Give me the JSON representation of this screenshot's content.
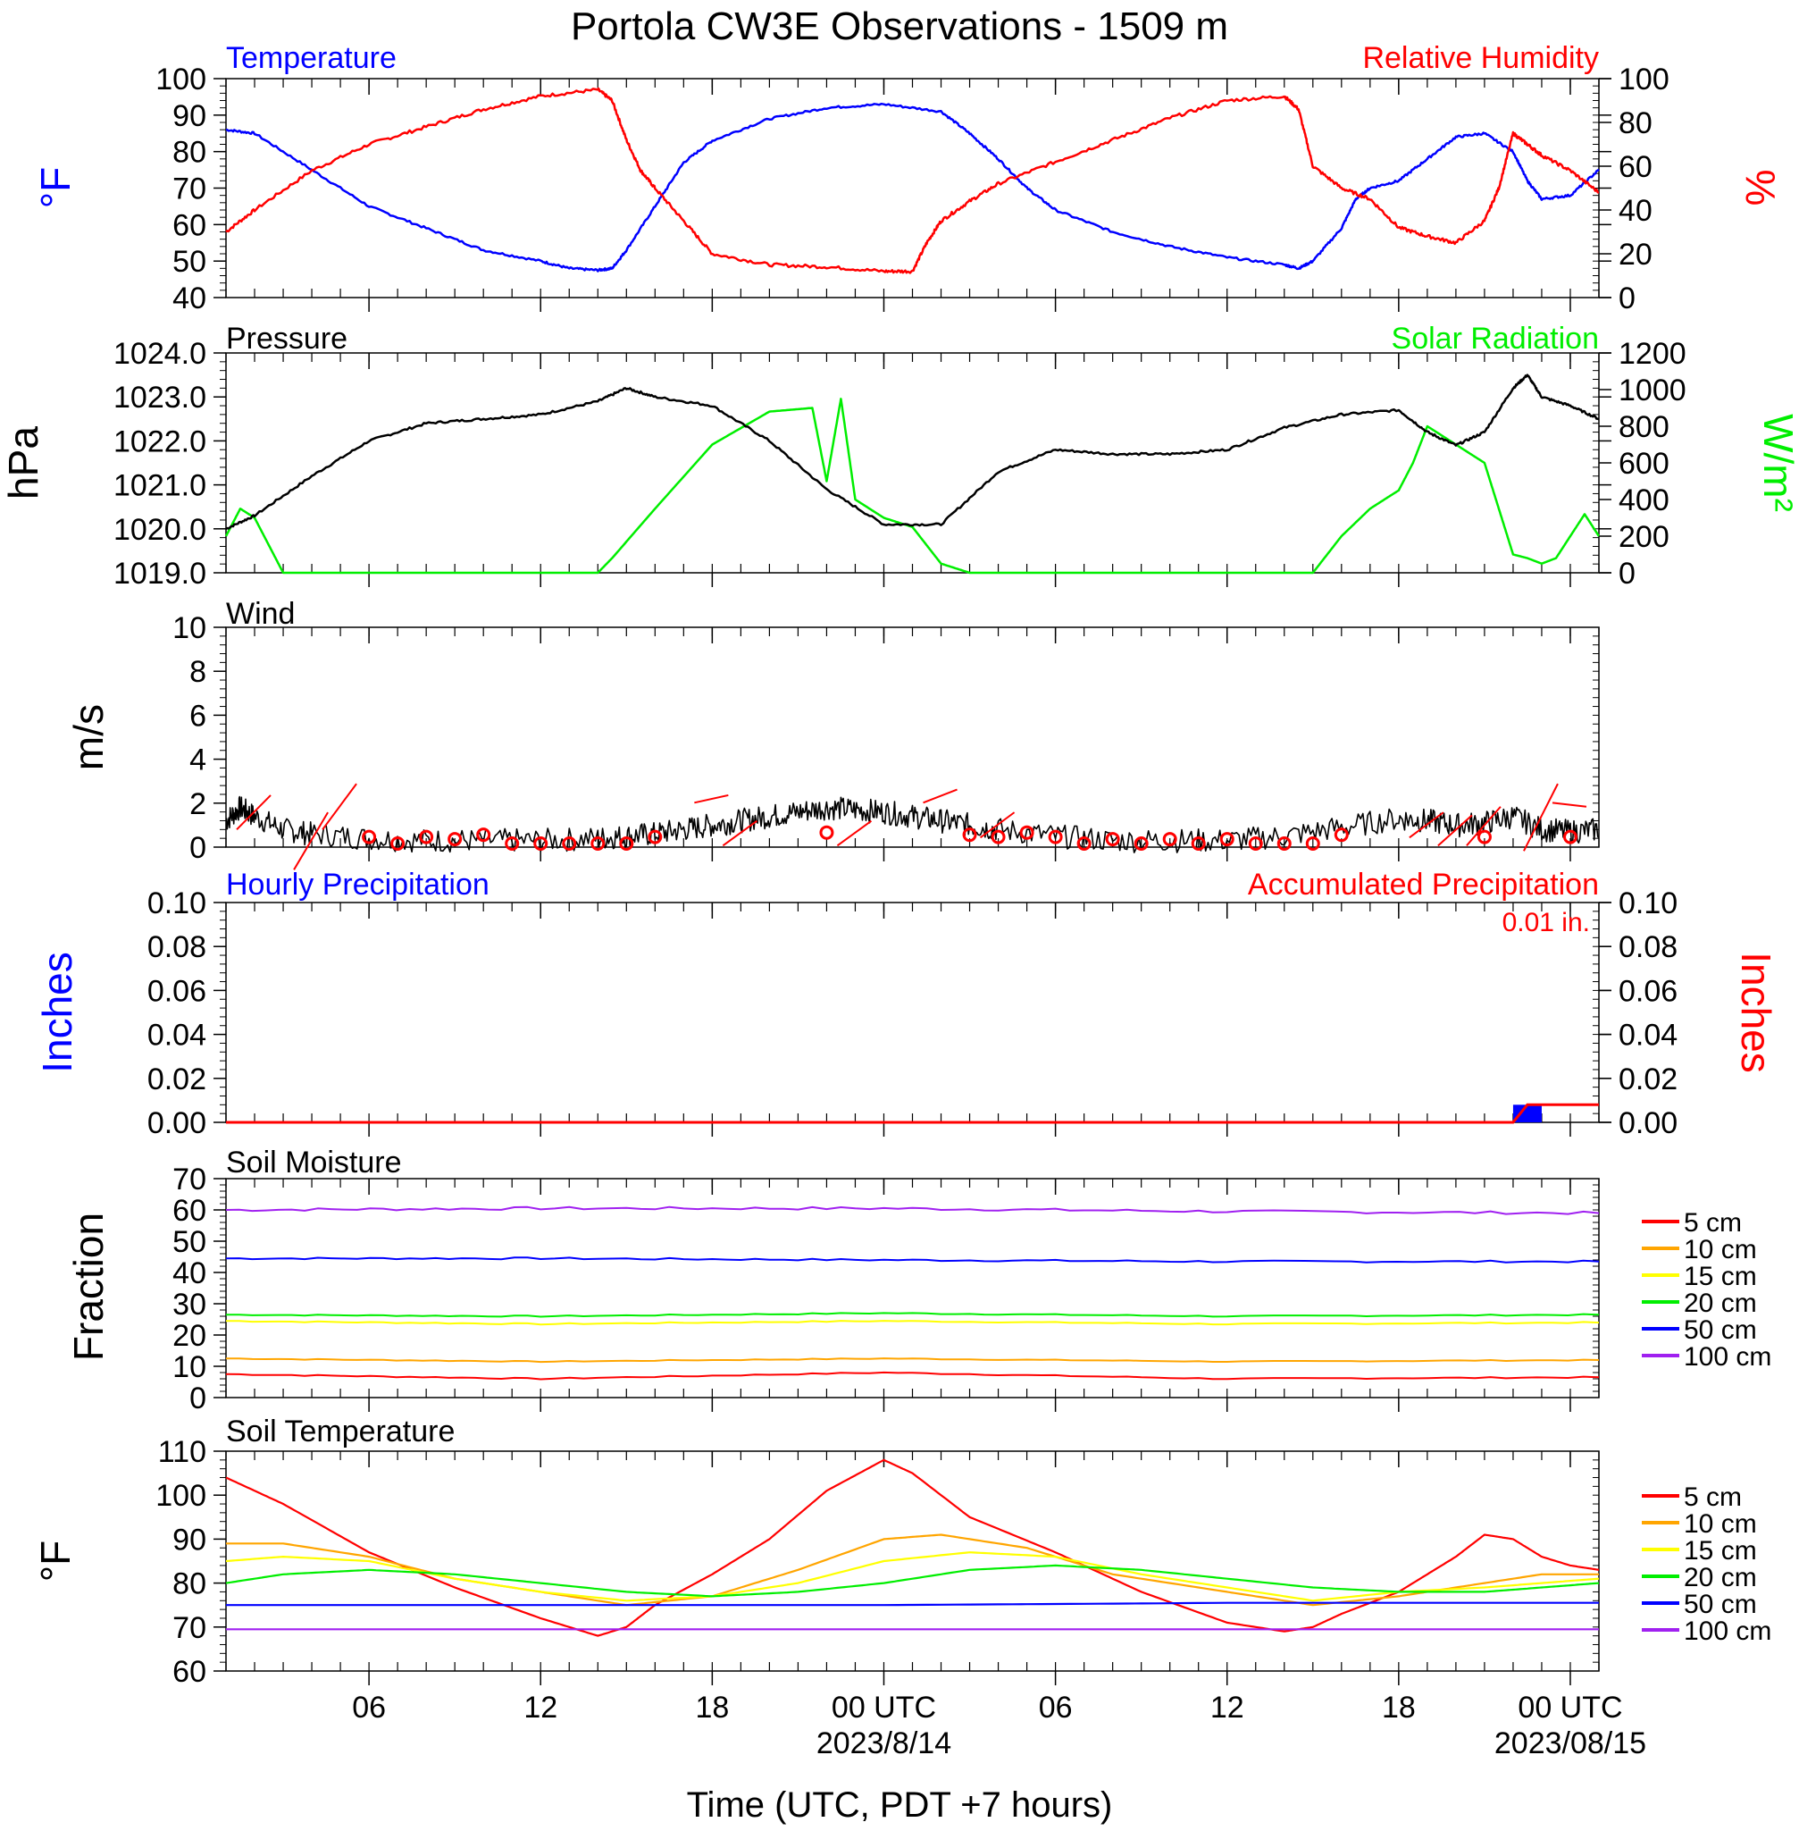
{
  "title": "Portola CW3E Observations - 1509 m",
  "xlabel": "Time (UTC, PDT +7 hours)",
  "x_axis": {
    "ticks": [
      {
        "hour": 6,
        "label": "06",
        "sub": ""
      },
      {
        "hour": 12,
        "label": "12",
        "sub": ""
      },
      {
        "hour": 18,
        "label": "18",
        "sub": ""
      },
      {
        "hour": 24,
        "label": "00 UTC",
        "sub": "2023/8/14"
      },
      {
        "hour": 30,
        "label": "06",
        "sub": ""
      },
      {
        "hour": 36,
        "label": "12",
        "sub": ""
      },
      {
        "hour": 42,
        "label": "18",
        "sub": ""
      },
      {
        "hour": 48,
        "label": "00 UTC",
        "sub": "2023/08/15"
      }
    ],
    "range_hours": [
      1,
      49
    ]
  },
  "colors": {
    "temperature": "#0000ff",
    "humidity": "#ff0000",
    "pressure": "#000000",
    "solar": "#00ee00",
    "wind": "#000000",
    "wind_barb": "#ff0000",
    "hourly_precip": "#0000ff",
    "accum_precip": "#ff0000",
    "depth_5": "#ff0000",
    "depth_10": "#ffa500",
    "depth_15": "#ffff00",
    "depth_20": "#00ee00",
    "depth_50": "#0000ff",
    "depth_100": "#a020f0"
  },
  "panels": {
    "temp_rh": {
      "left_title": "Temperature",
      "right_title": "Relative Humidity",
      "left_unit": "°F",
      "right_unit": "%",
      "left_ticks": [
        "40",
        "50",
        "60",
        "70",
        "80",
        "90",
        "100"
      ],
      "right_ticks": [
        "0",
        "20",
        "40",
        "60",
        "80",
        "100"
      ]
    },
    "pressure_solar": {
      "left_title": "Pressure",
      "right_title": "Solar Radiation",
      "left_unit": "hPa",
      "right_unit": "W/m²",
      "left_ticks": [
        "1019.0",
        "1020.0",
        "1021.0",
        "1022.0",
        "1023.0",
        "1024.0"
      ],
      "right_ticks": [
        "0",
        "200",
        "400",
        "600",
        "800",
        "1000",
        "1200"
      ]
    },
    "wind": {
      "left_title": "Wind",
      "left_unit": "m/s",
      "left_ticks": [
        "0",
        "2",
        "4",
        "6",
        "8",
        "10"
      ]
    },
    "precip": {
      "left_title": "Hourly Precipitation",
      "right_title": "Accumulated Precipitation",
      "total_label": "0.01 in.",
      "left_unit": "Inches",
      "right_unit": "Inches",
      "left_ticks": [
        "0.00",
        "0.02",
        "0.04",
        "0.06",
        "0.08",
        "0.10"
      ],
      "right_ticks": [
        "0.00",
        "0.02",
        "0.04",
        "0.06",
        "0.08",
        "0.10"
      ]
    },
    "soil_moisture": {
      "left_title": "Soil Moisture",
      "left_unit": "Fraction",
      "left_ticks": [
        "0",
        "10",
        "20",
        "30",
        "40",
        "50",
        "60",
        "70"
      ]
    },
    "soil_temperature": {
      "left_title": "Soil Temperature",
      "left_unit": "°F",
      "left_ticks": [
        "60",
        "70",
        "80",
        "90",
        "100",
        "110"
      ]
    }
  },
  "legend_depths": [
    "5 cm",
    "10 cm",
    "15 cm",
    "20 cm",
    "50 cm",
    "100 cm"
  ],
  "chart_data": [
    {
      "type": "line",
      "panel": "temp_rh",
      "ylim_left": [
        40,
        100
      ],
      "ylim_right": [
        0,
        100
      ],
      "series": [
        {
          "name": "Temperature",
          "axis": "left",
          "x": [
            1,
            2,
            4,
            6,
            8,
            10,
            12,
            13,
            14,
            14.5,
            15,
            16,
            17,
            18,
            20,
            22,
            24,
            26,
            27,
            28,
            29,
            30,
            32,
            34,
            36,
            38,
            38.5,
            39,
            40,
            40.5,
            41,
            42,
            43,
            44,
            45,
            46,
            46.5,
            47,
            48,
            49
          ],
          "values": [
            86,
            85,
            75,
            65,
            59,
            53,
            50,
            48,
            47.5,
            48,
            53,
            65,
            77,
            83,
            89,
            92,
            93,
            91,
            85,
            78,
            70,
            64,
            58,
            54,
            51,
            49,
            48,
            50,
            59,
            67,
            70,
            72,
            78,
            84,
            85,
            80,
            72,
            67,
            68,
            75
          ]
        },
        {
          "name": "Relative Humidity",
          "axis": "right",
          "x": [
            1,
            2,
            4,
            6,
            8,
            10,
            12,
            14,
            14.5,
            15,
            15.5,
            16,
            17,
            18,
            20,
            22,
            24,
            25,
            25.5,
            26,
            27,
            28,
            30,
            32,
            34,
            36,
            38,
            38.5,
            39,
            40,
            41,
            42,
            43,
            44,
            45,
            45.5,
            46,
            46.5,
            47,
            48,
            49
          ],
          "values": [
            30,
            40,
            58,
            70,
            78,
            86,
            92,
            95,
            90,
            72,
            58,
            50,
            35,
            20,
            15,
            14,
            12,
            12,
            25,
            35,
            44,
            52,
            62,
            72,
            82,
            90,
            92,
            86,
            60,
            50,
            45,
            32,
            28,
            25,
            35,
            50,
            75,
            70,
            65,
            58,
            48
          ]
        }
      ]
    },
    {
      "type": "line",
      "panel": "pressure_solar",
      "ylim_left": [
        1019.0,
        1024.0
      ],
      "ylim_right": [
        0,
        1200
      ],
      "series": [
        {
          "name": "Pressure",
          "axis": "left",
          "x": [
            1,
            2,
            4,
            6,
            8,
            10,
            12,
            14,
            15,
            16,
            18,
            20,
            22,
            24,
            26,
            28,
            30,
            32,
            34,
            36,
            38,
            40,
            42,
            43,
            44,
            45,
            46,
            46.5,
            47,
            48,
            49
          ],
          "values": [
            1020.0,
            1020.3,
            1021.2,
            1022.0,
            1022.4,
            1022.5,
            1022.6,
            1022.9,
            1023.2,
            1023.0,
            1022.8,
            1022.0,
            1020.9,
            1020.1,
            1020.1,
            1021.3,
            1021.8,
            1021.7,
            1021.7,
            1021.8,
            1022.3,
            1022.6,
            1022.7,
            1022.2,
            1021.9,
            1022.2,
            1023.2,
            1023.5,
            1023.0,
            1022.8,
            1022.5
          ]
        },
        {
          "name": "Solar Radiation",
          "axis": "right",
          "x": [
            1,
            1.5,
            2,
            2.5,
            3,
            13,
            14,
            14.5,
            16,
            18,
            20,
            21.5,
            22,
            22.5,
            23,
            24,
            25,
            25.5,
            26,
            27,
            38,
            39,
            40,
            41,
            42,
            42.5,
            43,
            44,
            45,
            45.5,
            46,
            46.5,
            47,
            47.5,
            48,
            48.5,
            49
          ],
          "values": [
            200,
            350,
            300,
            150,
            0,
            0,
            0,
            80,
            350,
            700,
            880,
            900,
            500,
            950,
            400,
            300,
            250,
            150,
            50,
            0,
            0,
            0,
            200,
            350,
            450,
            600,
            800,
            700,
            600,
            350,
            100,
            80,
            50,
            80,
            200,
            320,
            200
          ]
        }
      ]
    },
    {
      "type": "line",
      "panel": "wind",
      "ylabel": "m/s",
      "ylim": [
        0,
        10
      ],
      "series": [
        {
          "name": "Wind",
          "x": [
            1,
            1.5,
            2,
            3,
            4,
            6,
            8,
            10,
            12,
            14,
            15,
            16,
            17,
            18,
            19,
            20,
            21,
            22,
            23,
            24,
            25,
            26,
            27,
            28,
            30,
            32,
            34,
            36,
            38,
            40,
            42,
            43,
            44,
            45,
            46,
            47,
            48,
            49
          ],
          "values": [
            1.2,
            1.8,
            1.4,
            0.8,
            0.6,
            0.4,
            0.3,
            0.3,
            0.3,
            0.4,
            0.5,
            0.6,
            0.8,
            1.0,
            1.2,
            1.4,
            1.6,
            1.8,
            1.7,
            1.6,
            1.4,
            1.2,
            1.0,
            0.8,
            0.5,
            0.3,
            0.3,
            0.3,
            0.5,
            0.9,
            1.3,
            1.2,
            1.0,
            1.1,
            1.4,
            0.8,
            0.7,
            0.8
          ]
        }
      ]
    },
    {
      "type": "bar",
      "panel": "precip",
      "ylim": [
        0,
        0.1
      ],
      "series": [
        {
          "name": "Hourly Precipitation",
          "x": [
            46.5
          ],
          "values": [
            0.008
          ]
        },
        {
          "name": "Accumulated Precipitation",
          "x": [
            46,
            46.5,
            49
          ],
          "values": [
            0.0,
            0.008,
            0.008
          ]
        }
      ]
    },
    {
      "type": "line",
      "panel": "soil_moisture",
      "ylim": [
        0,
        70
      ],
      "series": [
        {
          "name": "5 cm",
          "x": [
            1,
            12,
            24,
            36,
            49
          ],
          "values": [
            7.5,
            6,
            8,
            6,
            6.5
          ]
        },
        {
          "name": "10 cm",
          "x": [
            1,
            12,
            24,
            36,
            49
          ],
          "values": [
            12.5,
            11.5,
            12.5,
            11.5,
            12
          ]
        },
        {
          "name": "15 cm",
          "x": [
            1,
            12,
            24,
            36,
            49
          ],
          "values": [
            24.5,
            23.5,
            24.5,
            23.5,
            24
          ]
        },
        {
          "name": "20 cm",
          "x": [
            1,
            12,
            24,
            36,
            49
          ],
          "values": [
            26.5,
            26,
            27,
            26,
            26.5
          ]
        },
        {
          "name": "50 cm",
          "x": [
            1,
            12,
            24,
            36,
            49
          ],
          "values": [
            44.5,
            44.5,
            44,
            43.5,
            43.5
          ]
        },
        {
          "name": "100 cm",
          "x": [
            1,
            12,
            24,
            36,
            49
          ],
          "values": [
            60,
            60.5,
            60.5,
            59.5,
            59
          ]
        }
      ]
    },
    {
      "type": "line",
      "panel": "soil_temperature",
      "ylim": [
        60,
        110
      ],
      "series": [
        {
          "name": "5 cm",
          "x": [
            1,
            3,
            6,
            9,
            12,
            14,
            15,
            16,
            18,
            20,
            22,
            24,
            25,
            27,
            30,
            33,
            36,
            38,
            39,
            40,
            42,
            44,
            45,
            46,
            47,
            48,
            49
          ],
          "values": [
            104,
            98,
            87,
            79,
            72,
            68,
            70,
            75,
            82,
            90,
            101,
            108,
            105,
            95,
            87,
            78,
            71,
            69,
            70,
            73,
            78,
            86,
            91,
            90,
            86,
            84,
            83
          ]
        },
        {
          "name": "10 cm",
          "x": [
            1,
            3,
            6,
            9,
            12,
            15,
            18,
            21,
            24,
            26,
            29,
            32,
            36,
            39,
            42,
            45,
            47,
            49
          ],
          "values": [
            89,
            89,
            86,
            81,
            78,
            75,
            77,
            83,
            90,
            91,
            88,
            82,
            78,
            75,
            77,
            80,
            82,
            82
          ]
        },
        {
          "name": "15 cm",
          "x": [
            1,
            3,
            6,
            9,
            12,
            15,
            18,
            21,
            24,
            27,
            30,
            33,
            36,
            39,
            42,
            45,
            47,
            49
          ],
          "values": [
            85,
            86,
            85,
            81,
            78,
            76,
            77,
            80,
            85,
            87,
            86,
            82,
            79,
            76,
            78,
            79,
            80,
            81
          ]
        },
        {
          "name": "20 cm",
          "x": [
            1,
            3,
            6,
            9,
            12,
            15,
            18,
            21,
            24,
            27,
            30,
            33,
            36,
            39,
            42,
            45,
            47,
            49
          ],
          "values": [
            80,
            82,
            83,
            82,
            80,
            78,
            77,
            78,
            80,
            83,
            84,
            83,
            81,
            79,
            78,
            78,
            79,
            80
          ]
        },
        {
          "name": "50 cm",
          "x": [
            1,
            12,
            24,
            36,
            49
          ],
          "values": [
            75,
            75,
            75,
            75.5,
            75.5
          ]
        },
        {
          "name": "100 cm",
          "x": [
            1,
            12,
            24,
            36,
            49
          ],
          "values": [
            69.5,
            69.5,
            69.5,
            69.5,
            69.5
          ]
        }
      ]
    }
  ]
}
